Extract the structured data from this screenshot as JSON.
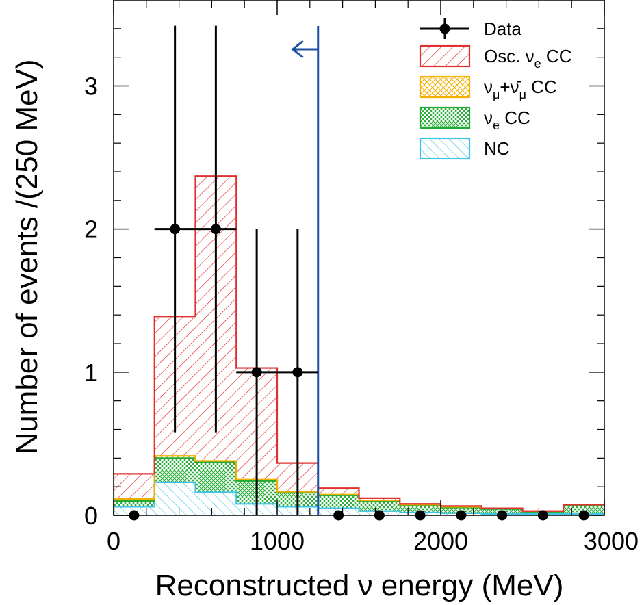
{
  "chart_data": {
    "type": "bar",
    "subtype": "stacked-histogram-with-data-points",
    "xlabel": "Reconstructed ν energy (MeV)",
    "ylabel": "Number of events /(250 MeV)",
    "xlim": [
      0,
      3000
    ],
    "ylim": [
      0,
      3.6
    ],
    "bin_width": 250,
    "bin_edges": [
      0,
      250,
      500,
      750,
      1000,
      1250,
      1500,
      1750,
      2000,
      2250,
      2500,
      2750,
      3000
    ],
    "x_ticks": [
      0,
      1000,
      2000,
      3000
    ],
    "x_tick_labels": [
      "0",
      "1000",
      "2000",
      "3000"
    ],
    "y_ticks": [
      0,
      1,
      2,
      3
    ],
    "y_tick_labels": [
      "0",
      "1",
      "2",
      "3"
    ],
    "grid": false,
    "legend_position": "top-right",
    "cut_line": {
      "x": 1250,
      "direction": "left",
      "color": "#1f4fa0"
    },
    "series": [
      {
        "name": "NC",
        "key": "nc",
        "color": "#3ec4e8",
        "values": [
          0.06,
          0.23,
          0.16,
          0.08,
          0.06,
          0.05,
          0.03,
          0.02,
          0.015,
          0.01,
          0.01,
          0.01
        ]
      },
      {
        "name": "ν_e CC",
        "key": "nuecc",
        "color": "#22aa33",
        "values": [
          0.04,
          0.17,
          0.21,
          0.16,
          0.1,
          0.09,
          0.07,
          0.05,
          0.04,
          0.035,
          0.015,
          0.06
        ]
      },
      {
        "name": "ν_μ+ν̄_μ CC",
        "key": "numu",
        "color": "#f2b000",
        "values": [
          0.015,
          0.015,
          0.01,
          0.01,
          0.005,
          0.005,
          0.005,
          0.005,
          0.005,
          0.005,
          0.005,
          0.005
        ]
      },
      {
        "name": "Osc. ν_e CC",
        "key": "osc",
        "color": "#e03030",
        "values": [
          0.175,
          0.975,
          1.99,
          0.78,
          0.2,
          0.045,
          0.015,
          0.005,
          0.005,
          0.0,
          0.0,
          0.0
        ]
      }
    ],
    "data_points": {
      "name": "Data",
      "x": [
        125,
        375,
        625,
        875,
        1125,
        1375,
        1625,
        1875,
        2125,
        2375,
        2625,
        2875
      ],
      "y": [
        0,
        2,
        2,
        1,
        1,
        0,
        0,
        0,
        0,
        0,
        0,
        0
      ],
      "y_err_low": [
        0,
        1.42,
        1.42,
        1.0,
        1.0,
        0,
        0,
        0,
        0,
        0,
        0,
        0
      ],
      "y_err_high": [
        0,
        1.42,
        1.42,
        1.0,
        1.0,
        0,
        0,
        0,
        0,
        0,
        0,
        0
      ],
      "x_err": [
        0,
        125,
        125,
        125,
        125,
        0,
        0,
        0,
        0,
        0,
        0,
        0
      ]
    },
    "legend": [
      {
        "key": "data",
        "label": "Data",
        "sub": ""
      },
      {
        "key": "osc",
        "label_parts": [
          "Osc. ν",
          "e",
          " CC"
        ]
      },
      {
        "key": "numu",
        "label_parts": [
          "ν",
          "μ",
          "+ν̄",
          "μ",
          " CC"
        ]
      },
      {
        "key": "nuecc",
        "label_parts": [
          "ν",
          "e",
          " CC"
        ]
      },
      {
        "key": "nc",
        "label_parts": [
          "NC"
        ]
      }
    ]
  }
}
